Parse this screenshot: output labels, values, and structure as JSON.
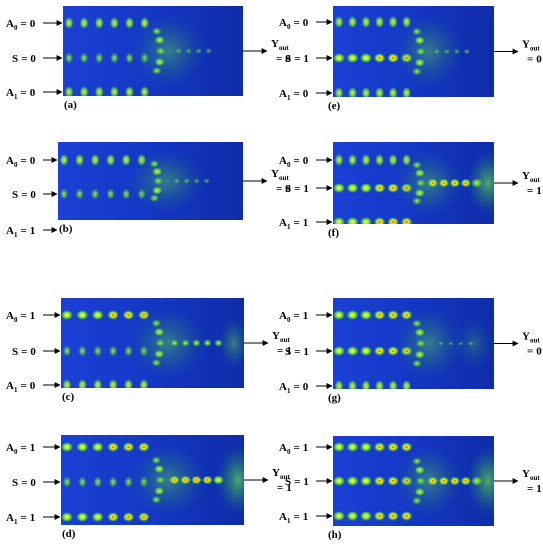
{
  "panels": [
    {
      "id": "a",
      "caption": "(a)",
      "a0": "0",
      "s": "0",
      "a1": "0",
      "y": "0",
      "out": "none"
    },
    {
      "id": "b",
      "caption": "(b)",
      "a0": "0",
      "s": "0",
      "a1": "1",
      "y": "0",
      "out": "none"
    },
    {
      "id": "c",
      "caption": "(c)",
      "a0": "1",
      "s": "0",
      "a1": "0",
      "y": "1",
      "out": "weak"
    },
    {
      "id": "d",
      "caption": "(d)",
      "a0": "1",
      "s": "0",
      "a1": "1",
      "y": "1",
      "out": "strong"
    },
    {
      "id": "e",
      "caption": "(e)",
      "a0": "0",
      "s": "1",
      "a1": "0",
      "y": "0",
      "out": "none"
    },
    {
      "id": "f",
      "caption": "(f)",
      "a0": "0",
      "s": "1",
      "a1": "1",
      "y": "1",
      "out": "strong"
    },
    {
      "id": "g",
      "caption": "(g)",
      "a0": "1",
      "s": "1",
      "a1": "0",
      "y": "0",
      "out": "faint"
    },
    {
      "id": "h",
      "caption": "(h)",
      "a0": "1",
      "s": "1",
      "a1": "1",
      "y": "1",
      "out": "strong"
    }
  ],
  "labels": {
    "a_letter": "A",
    "a0_sub": "0",
    "a1_sub": "1",
    "s_letter": "S",
    "y_letter": "Y",
    "y_sub": "out",
    "equals": "="
  },
  "colors": {
    "field_bg": "#1533c8",
    "field_mid": "#0f2fa8",
    "glow": "#3fbf3a",
    "spot_core": "#ffe000",
    "spot_hot": "#ff2020"
  }
}
